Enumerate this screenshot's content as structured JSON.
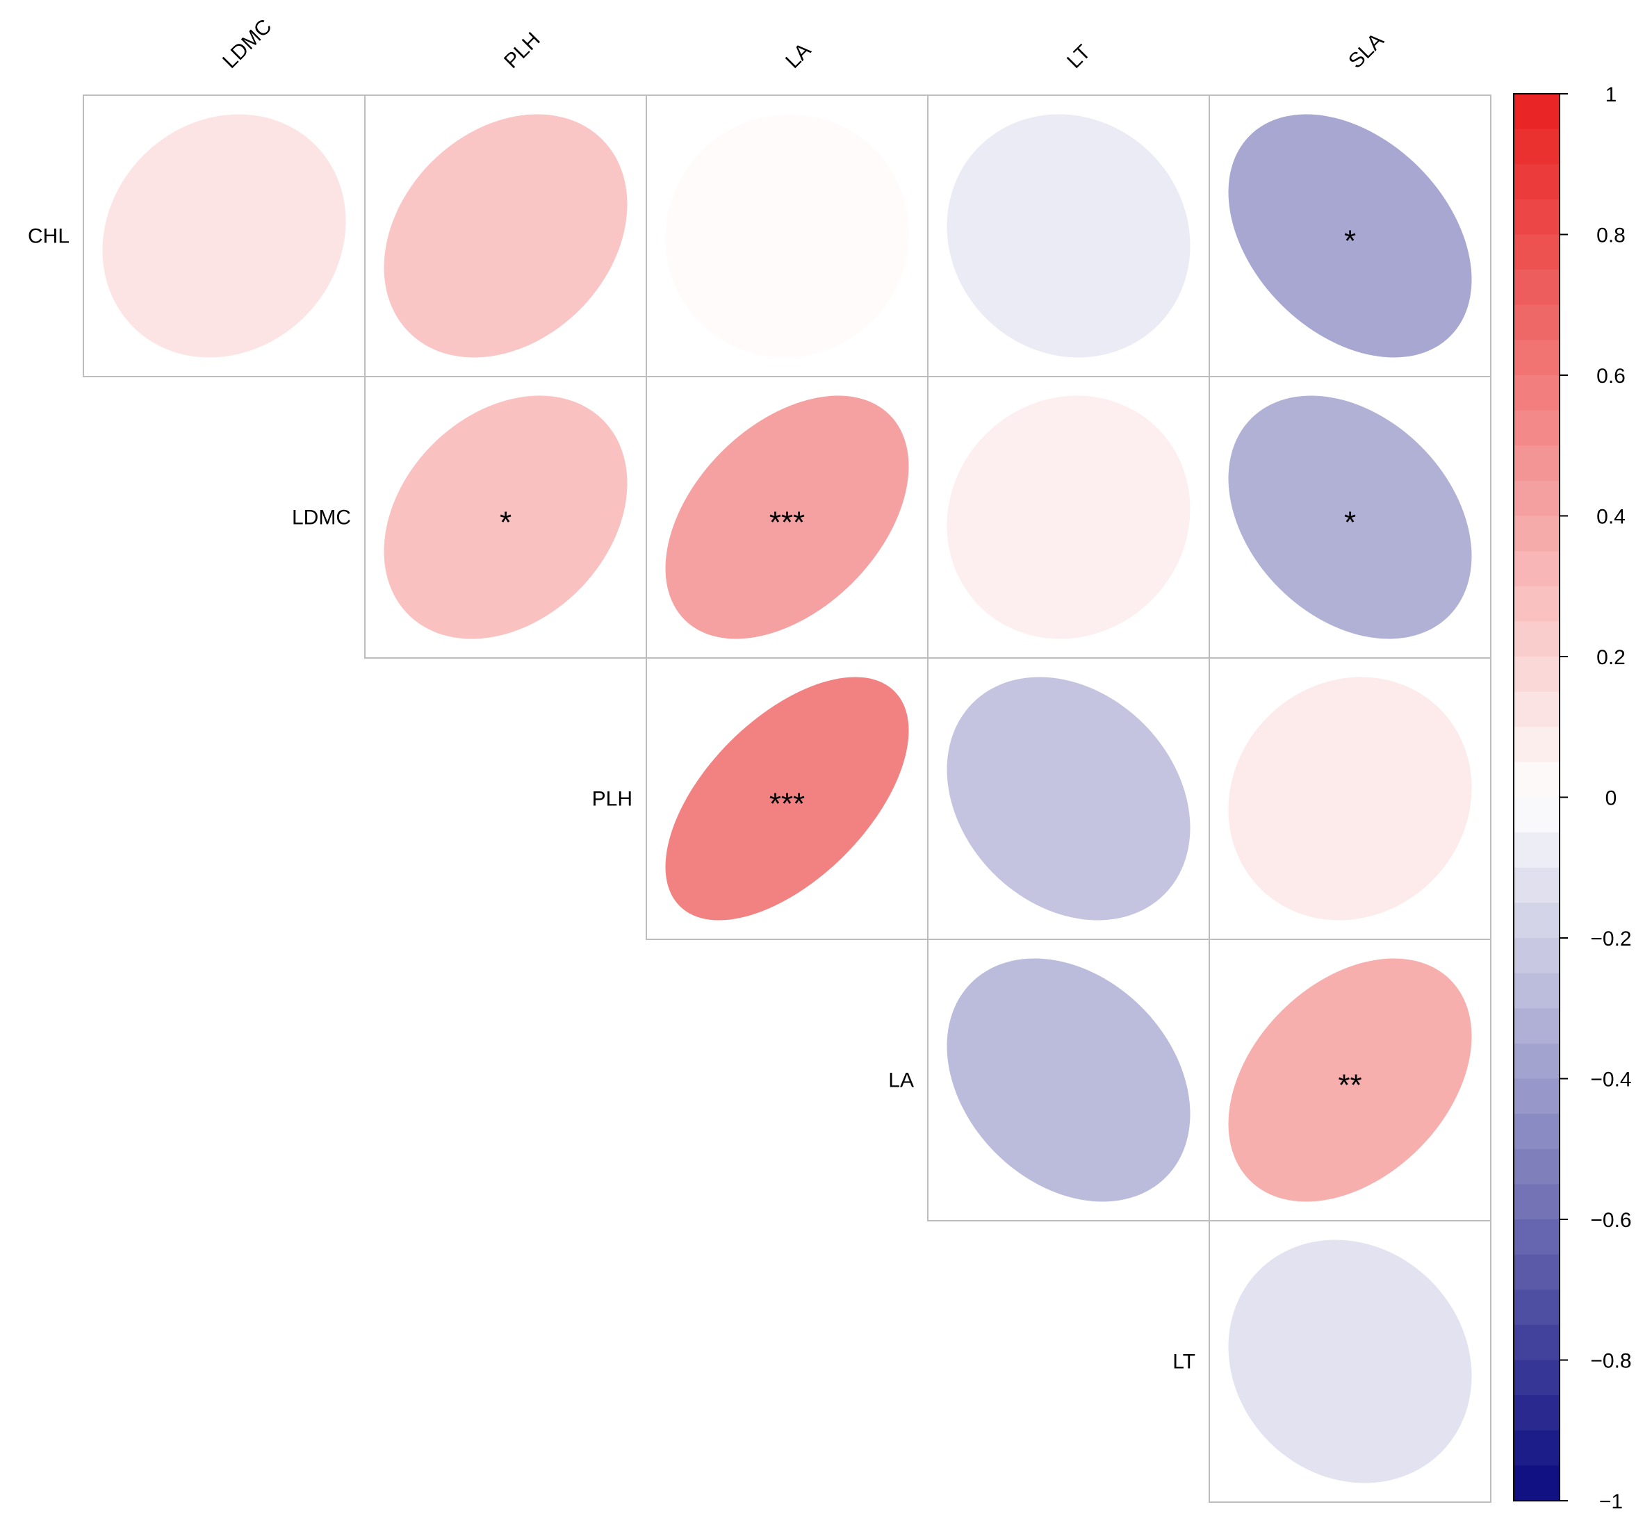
{
  "chart_data": {
    "type": "heatmap",
    "subtype": "correlation-ellipse-upper",
    "columns": [
      "LDMC",
      "PLH",
      "LA",
      "LT",
      "SLA"
    ],
    "rows": [
      "CHL",
      "LDMC",
      "PLH",
      "LA",
      "LT"
    ],
    "cells": [
      {
        "row": "CHL",
        "col": "LDMC",
        "r": 0.12,
        "sig": ""
      },
      {
        "row": "CHL",
        "col": "PLH",
        "r": 0.26,
        "sig": ""
      },
      {
        "row": "CHL",
        "col": "LA",
        "r": 0.02,
        "sig": ""
      },
      {
        "row": "CHL",
        "col": "LT",
        "r": -0.08,
        "sig": ""
      },
      {
        "row": "CHL",
        "col": "SLA",
        "r": -0.36,
        "sig": "*"
      },
      {
        "row": "LDMC",
        "col": "PLH",
        "r": 0.28,
        "sig": "*"
      },
      {
        "row": "LDMC",
        "col": "LA",
        "r": 0.42,
        "sig": "***"
      },
      {
        "row": "LDMC",
        "col": "LT",
        "r": 0.07,
        "sig": ""
      },
      {
        "row": "LDMC",
        "col": "SLA",
        "r": -0.32,
        "sig": "*"
      },
      {
        "row": "PLH",
        "col": "LA",
        "r": 0.56,
        "sig": "***"
      },
      {
        "row": "PLH",
        "col": "LT",
        "r": -0.24,
        "sig": ""
      },
      {
        "row": "PLH",
        "col": "SLA",
        "r": 0.09,
        "sig": ""
      },
      {
        "row": "LA",
        "col": "LT",
        "r": -0.28,
        "sig": ""
      },
      {
        "row": "LA",
        "col": "SLA",
        "r": 0.36,
        "sig": "**"
      },
      {
        "row": "LT",
        "col": "SLA",
        "r": -0.12,
        "sig": ""
      }
    ],
    "colorbar": {
      "min": -1,
      "max": 1,
      "ticks": [
        "1",
        "0.8",
        "0.6",
        "0.4",
        "0.2",
        "0",
        "−0.2",
        "−0.4",
        "−0.6",
        "−0.8",
        "−1"
      ],
      "tick_values": [
        1,
        0.8,
        0.6,
        0.4,
        0.2,
        0,
        -0.2,
        -0.4,
        -0.6,
        -0.8,
        -1
      ]
    },
    "colors": {
      "negative": "#0b0b80",
      "neutral": "#ffffff",
      "positive": "#e8201f",
      "grid": "#bdbdbd"
    },
    "title": "",
    "legend_position": "right"
  }
}
